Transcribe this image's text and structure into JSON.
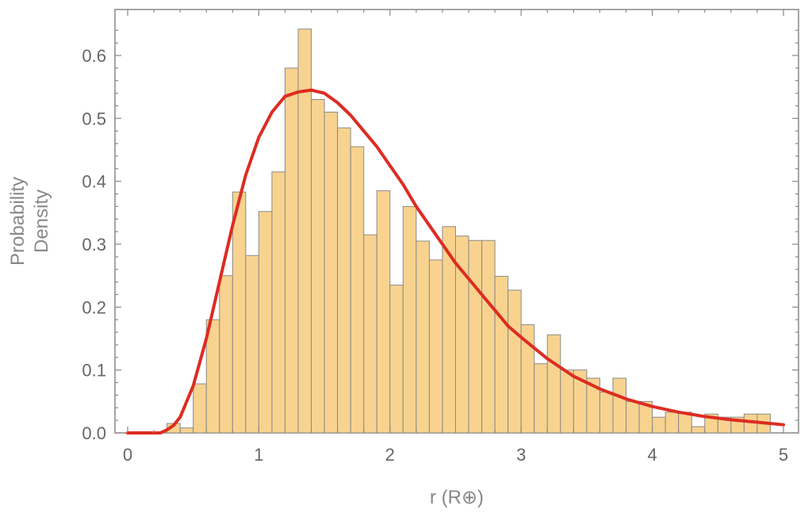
{
  "chart_data": {
    "type": "bar",
    "title": "",
    "xlabel": "r (R⊕)",
    "ylabel": [
      "Probability",
      "Density"
    ],
    "xlim": [
      -0.1,
      5.1
    ],
    "ylim": [
      0,
      0.66
    ],
    "x_ticks": [
      0,
      1,
      2,
      3,
      4,
      5
    ],
    "x_tick_labels": [
      "0",
      "1",
      "2",
      "3",
      "4",
      "5"
    ],
    "y_ticks": [
      0.0,
      0.1,
      0.2,
      0.3,
      0.4,
      0.5,
      0.6
    ],
    "y_tick_labels": [
      "0.0",
      "0.1",
      "0.2",
      "0.3",
      "0.4",
      "0.5",
      "0.6"
    ],
    "grid": false,
    "bin_width": 0.1,
    "bin_starts": [
      0.3,
      0.4,
      0.5,
      0.6,
      0.7,
      0.8,
      0.9,
      1.0,
      1.1,
      1.2,
      1.3,
      1.4,
      1.5,
      1.6,
      1.7,
      1.8,
      1.9,
      2.0,
      2.1,
      2.2,
      2.3,
      2.4,
      2.5,
      2.6,
      2.7,
      2.8,
      2.9,
      3.0,
      3.1,
      3.2,
      3.3,
      3.4,
      3.5,
      3.6,
      3.7,
      3.8,
      3.9,
      4.0,
      4.1,
      4.2,
      4.3,
      4.4,
      4.5,
      4.6,
      4.7,
      4.8
    ],
    "values": [
      0.015,
      0.008,
      0.078,
      0.18,
      0.25,
      0.383,
      0.282,
      0.352,
      0.415,
      0.58,
      0.642,
      0.53,
      0.51,
      0.485,
      0.455,
      0.315,
      0.385,
      0.235,
      0.36,
      0.305,
      0.275,
      0.328,
      0.313,
      0.306,
      0.306,
      0.249,
      0.227,
      0.172,
      0.11,
      0.156,
      0.1,
      0.1,
      0.087,
      0.065,
      0.087,
      0.05,
      0.05,
      0.025,
      0.033,
      0.033,
      0.01,
      0.03,
      0.025,
      0.025,
      0.03,
      0.03
    ],
    "bar_color": "#f8d38f",
    "bar_edge_color": "#8a8a8a",
    "fit_curve": {
      "type": "line",
      "color": "#dd2c22",
      "x": [
        0.0,
        0.25,
        0.3,
        0.35,
        0.4,
        0.5,
        0.6,
        0.7,
        0.8,
        0.9,
        1.0,
        1.1,
        1.2,
        1.3,
        1.4,
        1.5,
        1.6,
        1.7,
        1.8,
        1.9,
        2.0,
        2.1,
        2.2,
        2.3,
        2.4,
        2.5,
        2.6,
        2.7,
        2.8,
        2.9,
        3.0,
        3.2,
        3.4,
        3.6,
        3.8,
        4.0,
        4.2,
        4.4,
        4.6,
        4.8,
        5.0
      ],
      "y": [
        0.0,
        0.0,
        0.005,
        0.012,
        0.025,
        0.075,
        0.15,
        0.24,
        0.33,
        0.41,
        0.47,
        0.51,
        0.535,
        0.542,
        0.545,
        0.54,
        0.525,
        0.505,
        0.48,
        0.455,
        0.425,
        0.395,
        0.36,
        0.33,
        0.3,
        0.27,
        0.245,
        0.22,
        0.195,
        0.17,
        0.152,
        0.118,
        0.09,
        0.07,
        0.054,
        0.042,
        0.033,
        0.026,
        0.021,
        0.017,
        0.013
      ]
    }
  }
}
